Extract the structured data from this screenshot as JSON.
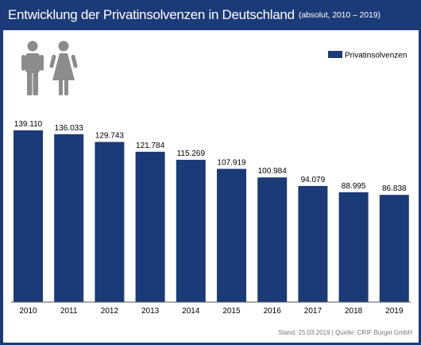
{
  "header": {
    "title": "Entwicklung der Privatinsolvenzen in Deutschland",
    "subtitle": "(absolut, 2010 – 2019)"
  },
  "icons": {
    "male": "man-icon",
    "female": "woman-icon"
  },
  "footer": {
    "source": "Stand: 25.03.2019 | Quelle: CRIF Bürgel GmbH"
  },
  "colors": {
    "frame": "#1b3a78",
    "bar": "#1b3a78",
    "icon": "#8c8c8c",
    "panel": "#ffffff"
  },
  "chart_data": {
    "type": "bar",
    "categories": [
      "2010",
      "2011",
      "2012",
      "2013",
      "2014",
      "2015",
      "2016",
      "2017",
      "2018",
      "2019"
    ],
    "series": [
      {
        "name": "Privatinsolvenzen",
        "values": [
          139110,
          136033,
          129743,
          121784,
          115269,
          107919,
          100984,
          94079,
          88995,
          86838
        ],
        "labels": [
          "139.110",
          "136.033",
          "129.743",
          "121.784",
          "115.269",
          "107.919",
          "100.984",
          "94.079",
          "88.995",
          "86.838"
        ]
      }
    ],
    "ylim": [
      0,
      139110
    ],
    "legend": "top-right",
    "grid": false
  }
}
